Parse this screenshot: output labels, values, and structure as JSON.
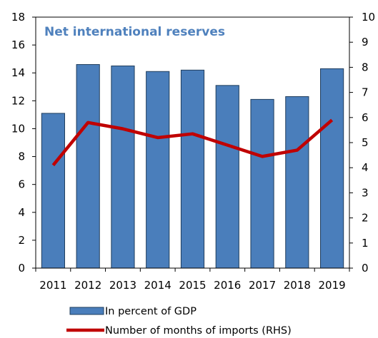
{
  "chart_data": {
    "type": "bar",
    "title": "Net international reserves",
    "categories": [
      "2011",
      "2012",
      "2013",
      "2014",
      "2015",
      "2016",
      "2017",
      "2018",
      "2019"
    ],
    "ylim": [
      0,
      18
    ],
    "yticks": [
      "0",
      "2",
      "4",
      "6",
      "8",
      "10",
      "12",
      "14",
      "16",
      "18"
    ],
    "y2lim": [
      0,
      10
    ],
    "y2ticks": [
      "0",
      "1",
      "2",
      "3",
      "4",
      "5",
      "6",
      "7",
      "8",
      "9",
      "10"
    ],
    "legend_position": "bottom",
    "series": [
      {
        "name": "In percent of GDP",
        "type": "bar",
        "axis": "left",
        "color": "#4a7ebb",
        "values": [
          11.1,
          14.6,
          14.5,
          14.1,
          14.2,
          13.1,
          12.1,
          12.3,
          14.3
        ]
      },
      {
        "name": "Number of months of imports (RHS)",
        "type": "line",
        "axis": "right",
        "color": "#c00000",
        "values": [
          4.1,
          5.8,
          5.55,
          5.2,
          5.35,
          4.9,
          4.45,
          4.7,
          5.9
        ]
      }
    ]
  }
}
